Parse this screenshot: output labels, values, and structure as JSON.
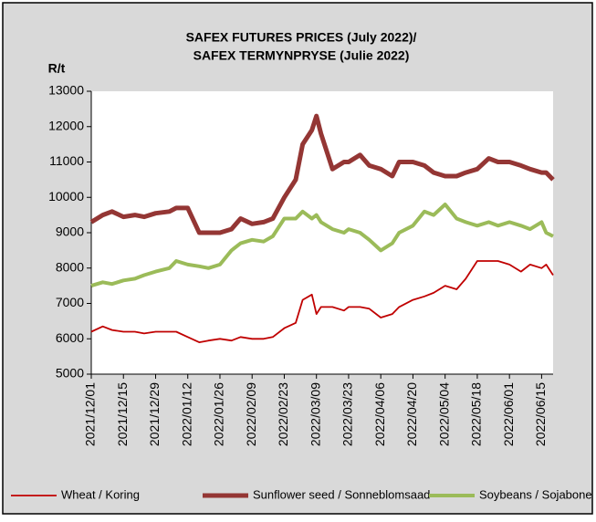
{
  "chart_data": {
    "type": "line",
    "title": [
      "SAFEX FUTURES PRICES (July 2022)/",
      "SAFEX TERMYNPRYSE (Julie 2022)"
    ],
    "y_label": "R/t",
    "x": [
      "2021/12/01",
      "2021/12/06",
      "2021/12/10",
      "2021/12/15",
      "2021/12/20",
      "2021/12/24",
      "2021/12/29",
      "2022/01/04",
      "2022/01/07",
      "2022/01/12",
      "2022/01/17",
      "2022/01/21",
      "2022/01/26",
      "2022/01/31",
      "2022/02/04",
      "2022/02/09",
      "2022/02/14",
      "2022/02/18",
      "2022/02/23",
      "2022/02/28",
      "2022/03/03",
      "2022/03/07",
      "2022/03/09",
      "2022/03/11",
      "2022/03/16",
      "2022/03/21",
      "2022/03/23",
      "2022/03/28",
      "2022/04/01",
      "2022/04/06",
      "2022/04/11",
      "2022/04/14",
      "2022/04/20",
      "2022/04/25",
      "2022/04/29",
      "2022/05/04",
      "2022/05/09",
      "2022/05/13",
      "2022/05/18",
      "2022/05/23",
      "2022/05/27",
      "2022/06/01",
      "2022/06/06",
      "2022/06/10",
      "2022/06/15",
      "2022/06/17",
      "2022/06/20"
    ],
    "series": [
      {
        "name": "Wheat / Koring",
        "color": "#c00000",
        "values": [
          6200,
          6350,
          6250,
          6200,
          6200,
          6150,
          6200,
          6200,
          6200,
          6050,
          5900,
          5950,
          6000,
          5950,
          6050,
          6000,
          6000,
          6050,
          6300,
          6450,
          7100,
          7250,
          6700,
          6900,
          6900,
          6800,
          6900,
          6900,
          6850,
          6600,
          6700,
          6900,
          7100,
          7200,
          7300,
          7500,
          7400,
          7700,
          8200,
          8200,
          8200,
          8100,
          7900,
          8100,
          8000,
          8100,
          7800
        ]
      },
      {
        "name": "Sunflower seed / Sonneblomsaad",
        "color": "#943634",
        "values": [
          9300,
          9500,
          9600,
          9450,
          9500,
          9450,
          9550,
          9600,
          9700,
          9700,
          9000,
          9000,
          9000,
          9100,
          9400,
          9250,
          9300,
          9400,
          10000,
          10500,
          11500,
          11900,
          12300,
          11800,
          10800,
          11000,
          11000,
          11200,
          10900,
          10800,
          10600,
          11000,
          11000,
          10900,
          10700,
          10600,
          10600,
          10700,
          10800,
          11100,
          11000,
          11000,
          10900,
          10800,
          10700,
          10700,
          10500
        ]
      },
      {
        "name": "Soybeans / Sojabone",
        "color": "#9bbb59",
        "values": [
          7500,
          7600,
          7550,
          7650,
          7700,
          7800,
          7900,
          8000,
          8200,
          8100,
          8050,
          8000,
          8100,
          8500,
          8700,
          8800,
          8750,
          8900,
          9400,
          9400,
          9600,
          9400,
          9500,
          9300,
          9100,
          9000,
          9100,
          9000,
          8800,
          8500,
          8700,
          9000,
          9200,
          9600,
          9500,
          9800,
          9400,
          9300,
          9200,
          9300,
          9200,
          9300,
          9200,
          9100,
          9300,
          9000,
          8900
        ]
      }
    ],
    "xlim": [
      "2021/12/01",
      "2022/06/20"
    ],
    "xticks": [
      "2021/12/01",
      "2021/12/15",
      "2021/12/29",
      "2022/01/12",
      "2022/01/26",
      "2022/02/09",
      "2022/02/23",
      "2022/03/09",
      "2022/03/23",
      "2022/04/06",
      "2022/04/20",
      "2022/05/04",
      "2022/05/18",
      "2022/06/01",
      "2022/06/15"
    ],
    "ylim": [
      5000,
      13000
    ],
    "yticks": [
      5000,
      6000,
      7000,
      8000,
      9000,
      10000,
      11000,
      12000,
      13000
    ],
    "grid": false,
    "legend": "bottom"
  }
}
